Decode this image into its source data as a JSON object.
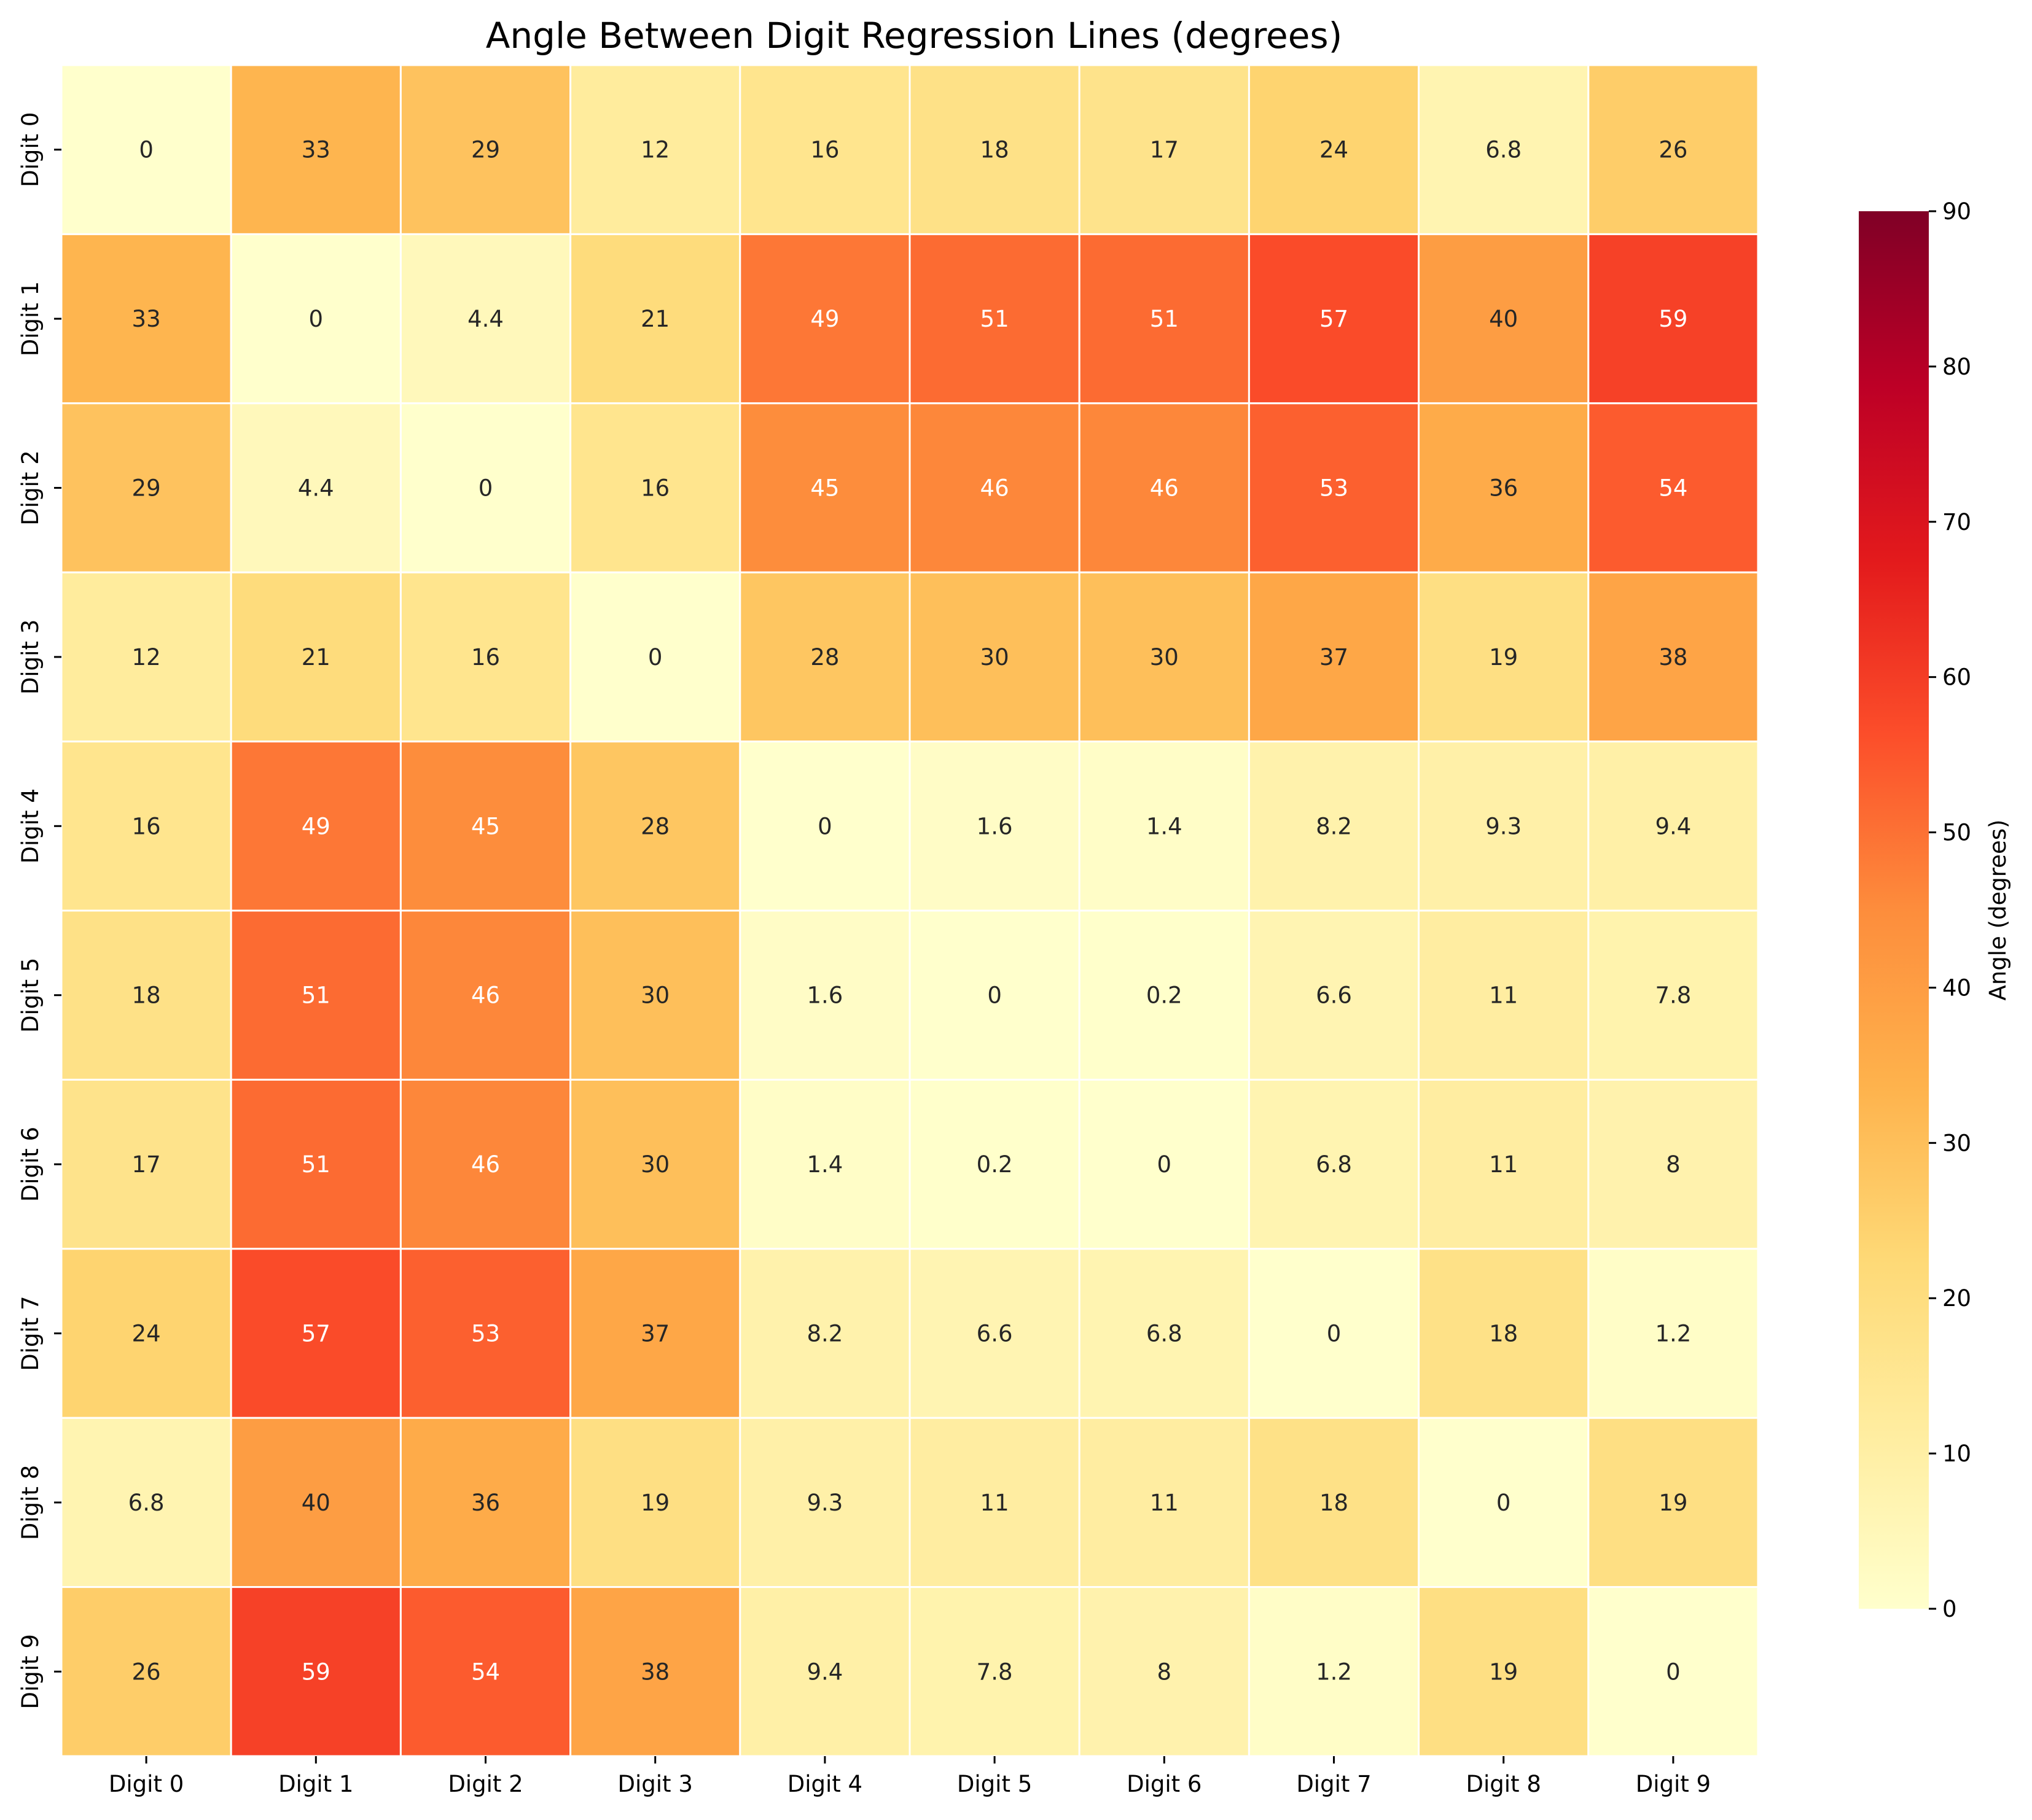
{
  "chart_data": {
    "type": "heatmap",
    "title": "Angle Between Digit Regression Lines (degrees)",
    "xlabel": "",
    "ylabel": "",
    "x_categories": [
      "Digit 0",
      "Digit 1",
      "Digit 2",
      "Digit 3",
      "Digit 4",
      "Digit 5",
      "Digit 6",
      "Digit 7",
      "Digit 8",
      "Digit 9"
    ],
    "y_categories": [
      "Digit 0",
      "Digit 1",
      "Digit 2",
      "Digit 3",
      "Digit 4",
      "Digit 5",
      "Digit 6",
      "Digit 7",
      "Digit 8",
      "Digit 9"
    ],
    "values": [
      [
        0,
        33,
        29,
        12,
        16,
        18,
        17,
        24,
        6.8,
        26
      ],
      [
        33,
        0,
        4.4,
        21,
        49,
        51,
        51,
        57,
        40,
        59
      ],
      [
        29,
        4.4,
        0,
        16,
        45,
        46,
        46,
        53,
        36,
        54
      ],
      [
        12,
        21,
        16,
        0,
        28,
        30,
        30,
        37,
        19,
        38
      ],
      [
        16,
        49,
        45,
        28,
        0,
        1.6,
        1.4,
        8.2,
        9.3,
        9.4
      ],
      [
        18,
        51,
        46,
        30,
        1.6,
        0,
        0.2,
        6.6,
        11,
        7.8
      ],
      [
        17,
        51,
        46,
        30,
        1.4,
        0.2,
        0,
        6.8,
        11,
        8
      ],
      [
        24,
        57,
        53,
        37,
        8.2,
        6.6,
        6.8,
        0,
        18,
        1.2
      ],
      [
        6.8,
        40,
        36,
        19,
        9.3,
        11,
        11,
        18,
        0,
        19
      ],
      [
        26,
        59,
        54,
        38,
        9.4,
        7.8,
        8,
        1.2,
        19,
        0
      ]
    ],
    "colormap": "YlOrRd",
    "colormap_stops": [
      "#ffffcc",
      "#ffeda0",
      "#fed976",
      "#feb24c",
      "#fd8d3c",
      "#fc4e2a",
      "#e31a1c",
      "#bd0026",
      "#800026"
    ],
    "vmin": 0,
    "vmax": 90,
    "colorbar": {
      "label": "Angle (degrees)",
      "ticks": [
        0,
        10,
        20,
        30,
        40,
        50,
        60,
        70,
        80,
        90
      ]
    },
    "annotation_light_text_color": "#ffffff",
    "annotation_dark_text_color": "#262626",
    "cell_border_color": "#ffffff"
  }
}
